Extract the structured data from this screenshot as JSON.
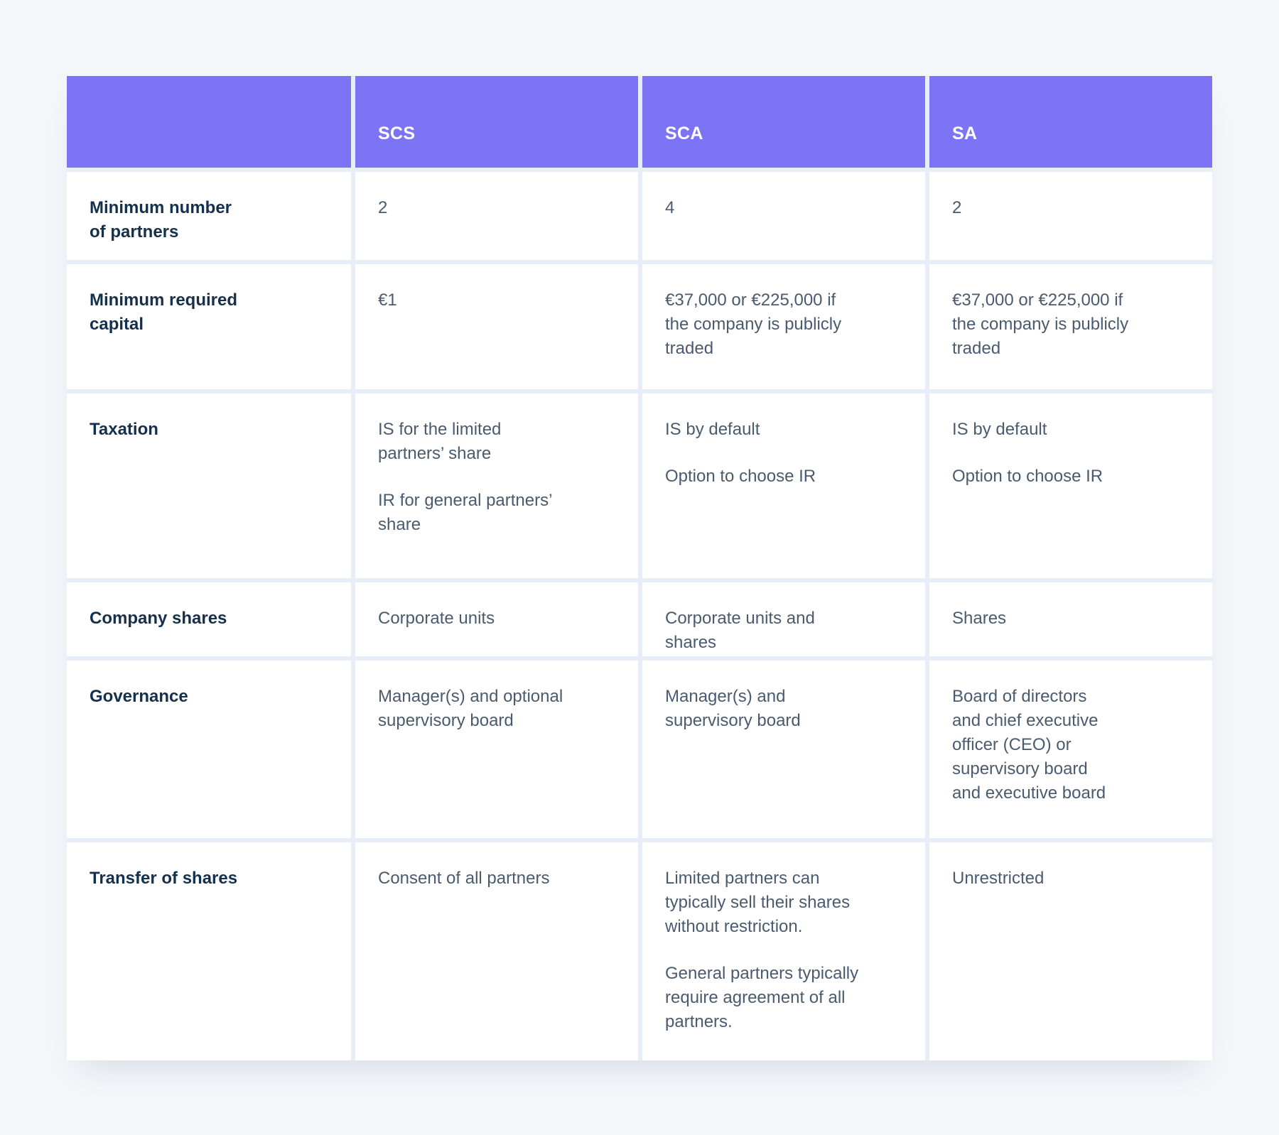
{
  "page": {
    "background": "#F4F7FA",
    "colors": {
      "header_bg": "#7C73F5",
      "header_text": "#FFFFFF",
      "row_label_text": "#15304C",
      "body_text": "#4A5B70",
      "cell_bg": "#FFFFFF",
      "divider": "#E7EEF8"
    }
  },
  "table": {
    "column_headers": [
      "",
      "SCS",
      "SCA",
      "SA"
    ],
    "rows": [
      {
        "label": "Minimum number\nof partners",
        "cells": [
          [
            "2"
          ],
          [
            "4"
          ],
          [
            "2"
          ]
        ]
      },
      {
        "label": "Minimum required\ncapital",
        "cells": [
          [
            "€1"
          ],
          [
            "€37,000 or €225,000 if\nthe company is publicly\ntraded"
          ],
          [
            "€37,000 or €225,000 if\nthe company is publicly\ntraded"
          ]
        ]
      },
      {
        "label": "Taxation",
        "cells": [
          [
            "IS for the limited\npartners’ share",
            "IR for general partners’\nshare"
          ],
          [
            "IS by default",
            "Option to choose IR"
          ],
          [
            "IS by default",
            "Option to choose IR"
          ]
        ]
      },
      {
        "label": "Company shares",
        "cells": [
          [
            "Corporate units"
          ],
          [
            "Corporate units and\nshares"
          ],
          [
            "Shares"
          ]
        ]
      },
      {
        "label": "Governance",
        "cells": [
          [
            "Manager(s) and optional\nsupervisory board"
          ],
          [
            "Manager(s) and\nsupervisory board"
          ],
          [
            "Board of directors\nand chief executive\nofficer (CEO) or\nsupervisory board\nand executive board"
          ]
        ]
      },
      {
        "label": "Transfer of shares",
        "cells": [
          [
            "Consent of all partners"
          ],
          [
            "Limited partners can\ntypically sell their shares\nwithout restriction.",
            "General partners typically\nrequire agreement of all\npartners."
          ],
          [
            "Unrestricted"
          ]
        ]
      }
    ]
  }
}
